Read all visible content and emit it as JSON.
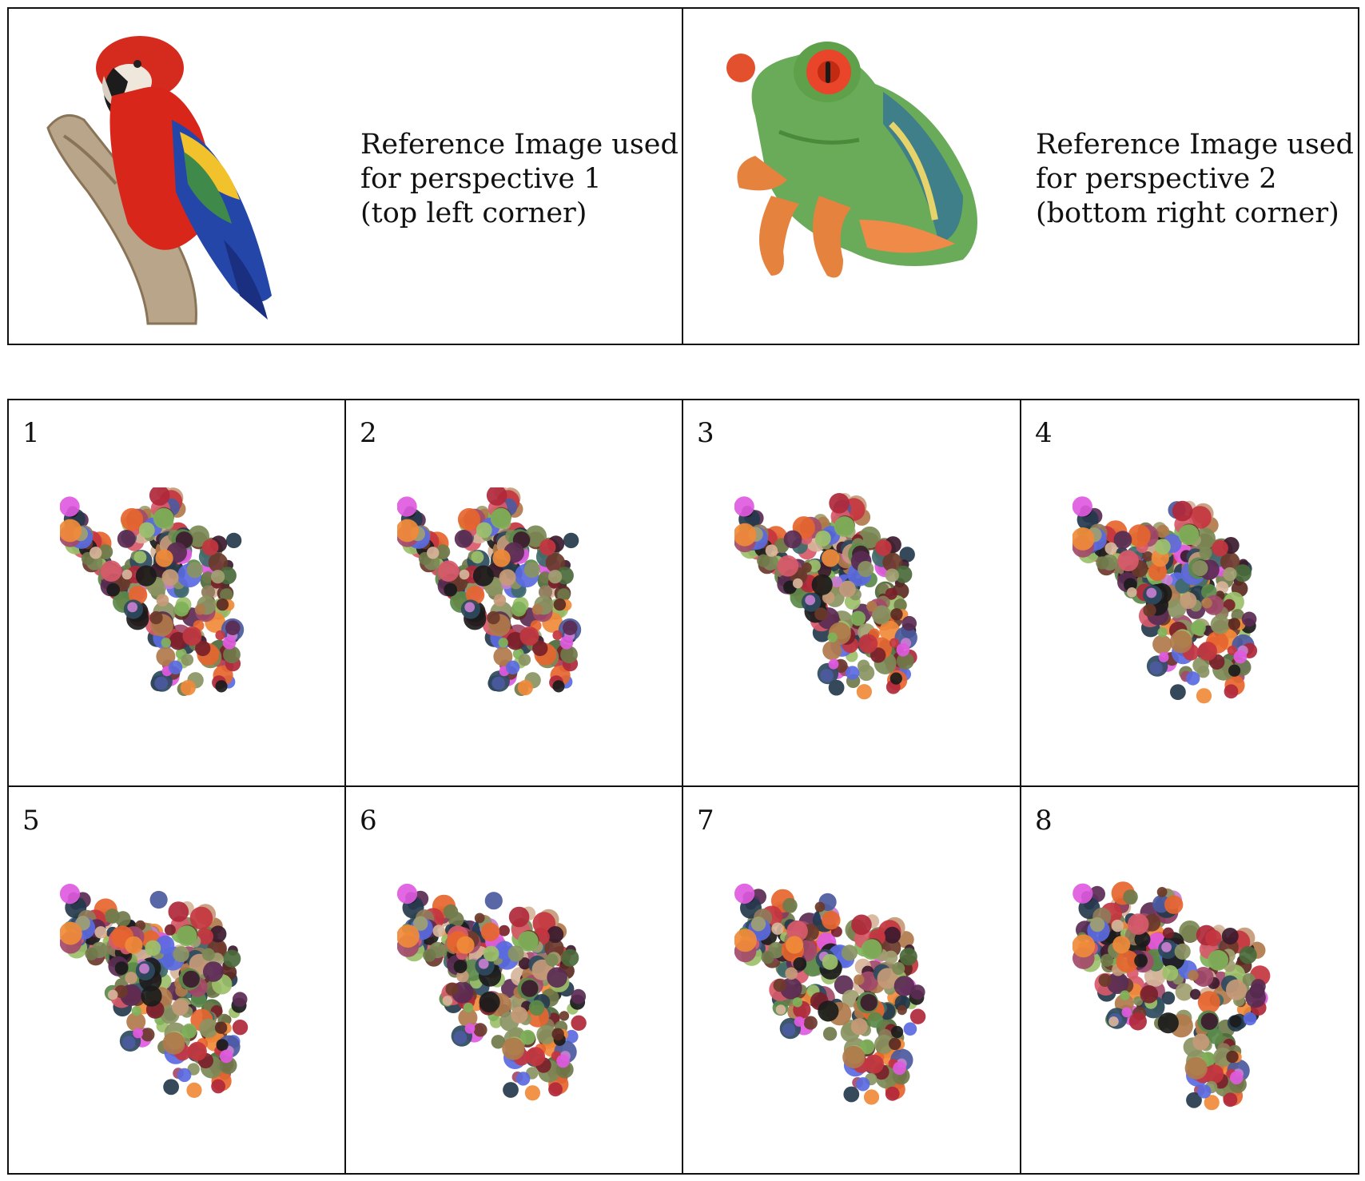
{
  "references": [
    {
      "caption": "Reference Image used\nfor perspective 1\n(top left corner)",
      "subject": "parrot"
    },
    {
      "caption": "Reference Image used\nfor perspective 2\n(bottom right corner)",
      "subject": "frog"
    }
  ],
  "panels": [
    {
      "label": "1",
      "blend": 0.0
    },
    {
      "label": "2",
      "blend": 0.0
    },
    {
      "label": "3",
      "blend": 0.15
    },
    {
      "label": "4",
      "blend": 0.3
    },
    {
      "label": "5",
      "blend": 0.55
    },
    {
      "label": "6",
      "blend": 0.65
    },
    {
      "label": "7",
      "blend": 0.8
    },
    {
      "label": "8",
      "blend": 1.0
    }
  ],
  "palette": [
    "#7b8a56",
    "#8a9462",
    "#6f7a4a",
    "#a0a070",
    "#5c2a22",
    "#7a1f2a",
    "#b0283a",
    "#c4353f",
    "#3c1a2e",
    "#5a2b52",
    "#2e4a5e",
    "#3f6a6a",
    "#243a4c",
    "#1b1b1b",
    "#c69a78",
    "#d6b49a",
    "#e6652e",
    "#f08a3a",
    "#9cc06a",
    "#7fb25a",
    "#5a8a4a",
    "#a34a6a",
    "#8a3a5a",
    "#4c5aa0",
    "#5a6ae0",
    "#c77fd0",
    "#e05ae0",
    "#d85a6a",
    "#6a3a2a",
    "#b07a4a",
    "#8e7a5a",
    "#4a6a3a"
  ]
}
